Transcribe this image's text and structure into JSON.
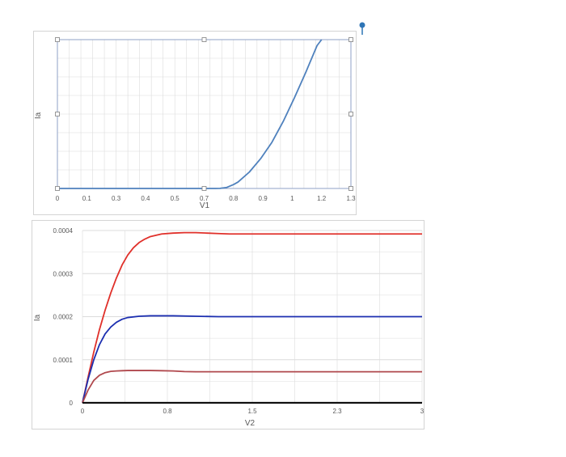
{
  "chart_data": [
    {
      "type": "line",
      "xlabel": "V1",
      "ylabel": "Ia",
      "xlim": [
        0,
        1.3
      ],
      "x_ticks": [
        "0",
        "0.1",
        "0.3",
        "0.4",
        "0.5",
        "0.7",
        "0.8",
        "0.9",
        "1",
        "1.2",
        "1.3"
      ],
      "grid": true,
      "selected": true,
      "colors": {
        "line": "#4f81bd",
        "grid": "#dcdcdc",
        "selection": "#8fa2c7"
      },
      "series": [
        {
          "x": [
            0,
            0.1,
            0.2,
            0.3,
            0.4,
            0.5,
            0.6,
            0.65,
            0.7,
            0.72,
            0.75,
            0.78,
            0.8,
            0.85,
            0.9,
            0.95,
            1.0,
            1.05,
            1.1,
            1.15,
            1.17
          ],
          "y": [
            0,
            0,
            0,
            0,
            0,
            0,
            0,
            0,
            0,
            0.0006,
            0.007,
            0.026,
            0.043,
            0.11,
            0.2,
            0.31,
            0.45,
            0.61,
            0.78,
            0.96,
            1.0
          ]
        }
      ]
    },
    {
      "type": "line",
      "xlabel": "V2",
      "ylabel": "Ia",
      "xlim": [
        0,
        3
      ],
      "ylim": [
        0,
        0.0004
      ],
      "x_ticks": [
        "0",
        "0.8",
        "1.5",
        "2.3",
        "3"
      ],
      "y_ticks": [
        "0",
        "0.0001",
        "0.0002",
        "0.0003",
        "0.0004"
      ],
      "grid": true,
      "colors": {
        "grid": "#dcdcdc"
      },
      "series": [
        {
          "color": "#e0302a",
          "x": [
            0,
            0.05,
            0.1,
            0.15,
            0.2,
            0.25,
            0.3,
            0.35,
            0.4,
            0.45,
            0.5,
            0.55,
            0.6,
            0.7,
            0.8,
            0.9,
            1.0,
            1.1,
            1.2,
            1.3,
            1.5,
            2.0,
            2.5,
            3.0
          ],
          "y": [
            0,
            6e-05,
            0.000118,
            0.00017,
            0.000215,
            0.000255,
            0.00029,
            0.00032,
            0.000343,
            0.00036,
            0.000372,
            0.00038,
            0.000386,
            0.000392,
            0.000394,
            0.000395,
            0.000395,
            0.000394,
            0.000393,
            0.000392,
            0.000392,
            0.000392,
            0.000392,
            0.000392
          ]
        },
        {
          "color": "#1c2fb0",
          "x": [
            0,
            0.05,
            0.1,
            0.15,
            0.2,
            0.25,
            0.3,
            0.35,
            0.4,
            0.5,
            0.6,
            0.7,
            0.8,
            1.0,
            1.2,
            1.5,
            2.0,
            2.5,
            3.0
          ],
          "y": [
            0,
            5.5e-05,
            0.0001,
            0.000135,
            0.00016,
            0.000176,
            0.000187,
            0.000194,
            0.000198,
            0.000201,
            0.000202,
            0.000202,
            0.000202,
            0.000201,
            0.0002,
            0.0002,
            0.0002,
            0.0002,
            0.0002
          ]
        },
        {
          "color": "#b0484d",
          "x": [
            0,
            0.05,
            0.1,
            0.15,
            0.2,
            0.25,
            0.3,
            0.35,
            0.4,
            0.5,
            0.6,
            0.7,
            0.8,
            0.9,
            1.0,
            1.5,
            2.0,
            2.5,
            3.0
          ],
          "y": [
            0,
            3e-05,
            5.2e-05,
            6.4e-05,
            7e-05,
            7.3e-05,
            7.4e-05,
            7.45e-05,
            7.5e-05,
            7.5e-05,
            7.5e-05,
            7.45e-05,
            7.4e-05,
            7.25e-05,
            7.2e-05,
            7.2e-05,
            7.2e-05,
            7.2e-05,
            7.2e-05
          ]
        },
        {
          "color": "#111111",
          "x": [
            0,
            3
          ],
          "y": [
            0,
            0
          ]
        }
      ]
    }
  ]
}
